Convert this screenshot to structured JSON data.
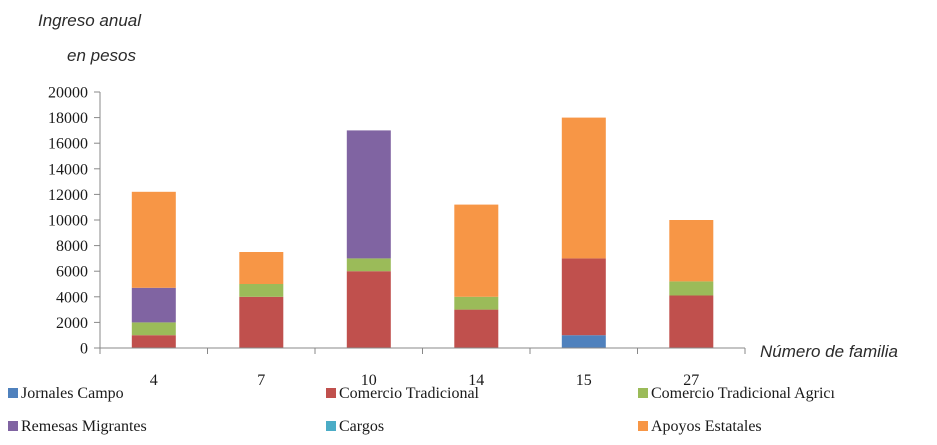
{
  "chart_data": {
    "type": "bar",
    "stacked": true,
    "ylabel_line1": "Ingreso anual",
    "ylabel_line2": "en pesos",
    "xlabel": "Número de familia",
    "categories": [
      "4",
      "7",
      "10",
      "14",
      "15",
      "27"
    ],
    "ylim": [
      0,
      20000
    ],
    "yticks": [
      0,
      2000,
      4000,
      6000,
      8000,
      10000,
      12000,
      14000,
      16000,
      18000,
      20000
    ],
    "grid": false,
    "legend_position": "bottom",
    "series": [
      {
        "name": "Jornales Campo",
        "color": "#4f81bd",
        "values": [
          0,
          0,
          0,
          0,
          1000,
          0
        ]
      },
      {
        "name": "Comercio Tradicional",
        "color": "#c0504d",
        "values": [
          1000,
          4000,
          6000,
          3000,
          6000,
          4100
        ]
      },
      {
        "name": "Comercio Tradicional Agricola",
        "legend_label": "Comercio Tradicional Agricı",
        "color": "#9bbb59",
        "values": [
          1000,
          1000,
          1000,
          1000,
          0,
          1100
        ]
      },
      {
        "name": "Remesas Migrantes",
        "color": "#8064a2",
        "values": [
          2700,
          0,
          10000,
          0,
          0,
          0
        ]
      },
      {
        "name": "Cargos",
        "color": "#4bacc6",
        "values": [
          0,
          0,
          0,
          0,
          0,
          0
        ]
      },
      {
        "name": "Apoyos Estatales",
        "color": "#f79646",
        "values": [
          7500,
          2500,
          0,
          7200,
          11000,
          4800
        ]
      }
    ]
  }
}
